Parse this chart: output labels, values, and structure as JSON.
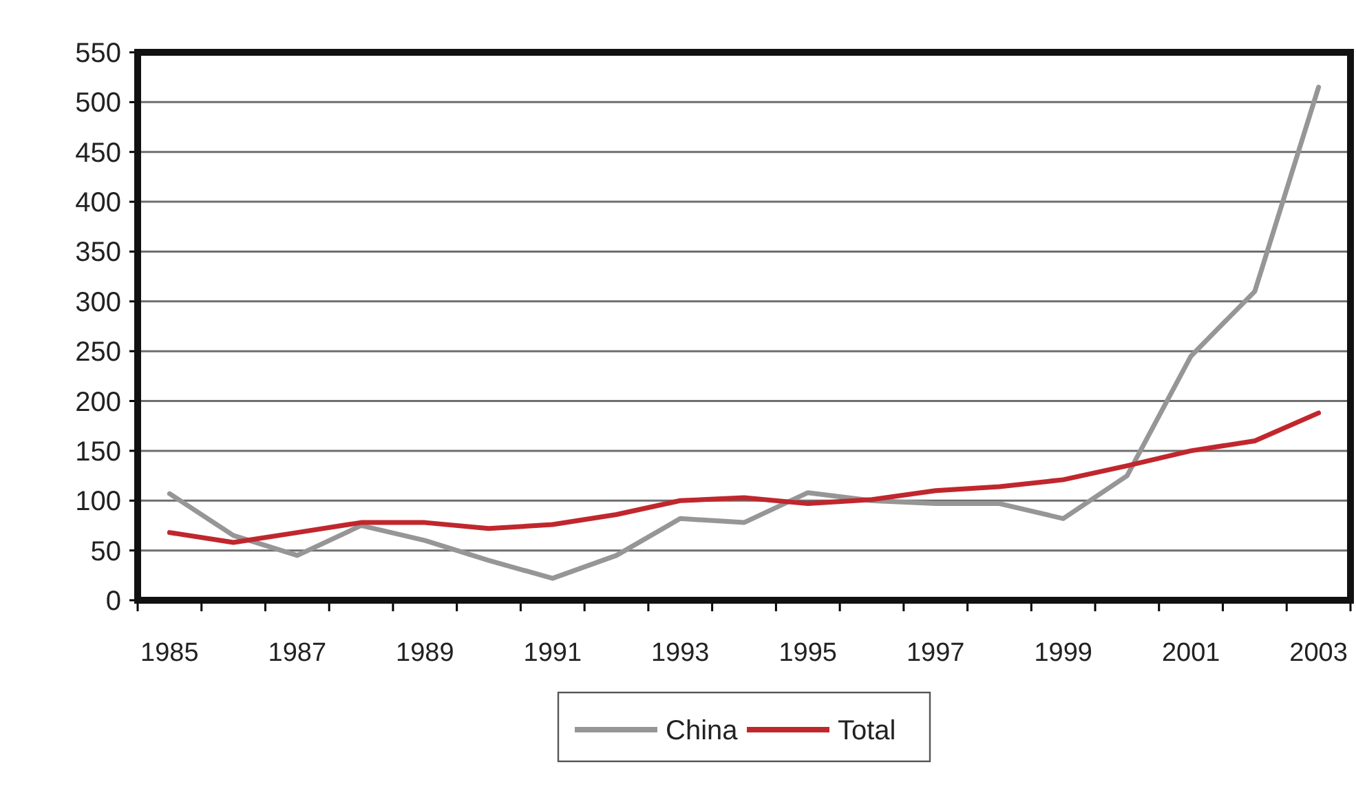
{
  "chart_data": {
    "type": "line",
    "categories": [
      "1985",
      null,
      "1987",
      null,
      "1989",
      null,
      "1991",
      null,
      "1993",
      null,
      "1995",
      null,
      "1997",
      null,
      "1999",
      null,
      "2001",
      null,
      "2003"
    ],
    "series": [
      {
        "name": "China",
        "color": "#969696",
        "values": [
          107,
          65,
          45,
          75,
          60,
          40,
          22,
          45,
          82,
          78,
          108,
          100,
          97,
          97,
          82,
          125,
          245,
          310,
          515
        ]
      },
      {
        "name": "Total",
        "color": "#c0272d",
        "values": [
          68,
          58,
          68,
          78,
          78,
          72,
          76,
          86,
          100,
          103,
          97,
          101,
          110,
          114,
          121,
          135,
          150,
          160,
          188
        ]
      }
    ],
    "ylim": [
      0,
      550
    ],
    "yticks": [
      0,
      50,
      100,
      150,
      200,
      250,
      300,
      350,
      400,
      450,
      500,
      550
    ],
    "grid": "y",
    "legend": "bottom",
    "marker": "none",
    "line_style": "solid"
  }
}
